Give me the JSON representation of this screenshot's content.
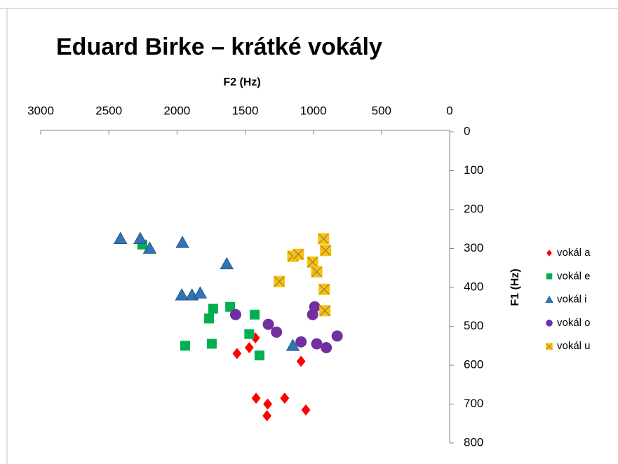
{
  "chart_data": {
    "type": "scatter",
    "title": "Eduard Birke – krátké vokály",
    "x_label": "F2 (Hz)",
    "y_label": "F1 (Hz)",
    "xlim": [
      3000,
      0
    ],
    "ylim": [
      0,
      800
    ],
    "xticks": [
      3000,
      2500,
      2000,
      1500,
      1000,
      500,
      0
    ],
    "yticks": [
      0,
      100,
      200,
      300,
      400,
      500,
      600,
      700,
      800
    ],
    "legend": "right",
    "series": [
      {
        "name": "vokál a",
        "color": "#ff0000",
        "marker": "diamond",
        "x": [
          1425,
          1560,
          1470,
          1090,
          1420,
          1210,
          1335,
          1340,
          1055
        ],
        "values": [
          530,
          570,
          555,
          590,
          685,
          685,
          700,
          730,
          715
        ]
      },
      {
        "name": "vokál e",
        "color": "#00b050",
        "marker": "square",
        "x": [
          2255,
          1735,
          1765,
          1610,
          1430,
          1470,
          1395,
          1745,
          1940
        ],
        "values": [
          290,
          455,
          480,
          450,
          470,
          520,
          575,
          545,
          550
        ]
      },
      {
        "name": "vokál i",
        "color": "#2e75b6",
        "marker": "triangle",
        "x": [
          2415,
          2270,
          2200,
          1960,
          1635,
          1965,
          1890,
          1830,
          1150
        ],
        "values": [
          275,
          275,
          300,
          285,
          340,
          420,
          420,
          415,
          550
        ]
      },
      {
        "name": "vokál o",
        "color": "#7030a0",
        "marker": "circle",
        "x": [
          1570,
          1330,
          1270,
          990,
          1005,
          1090,
          975,
          905,
          825
        ],
        "values": [
          470,
          495,
          515,
          450,
          470,
          540,
          545,
          555,
          525
        ]
      },
      {
        "name": "vokál u",
        "color": "#ffc000",
        "marker": "xsquare",
        "x": [
          925,
          910,
          1150,
          1110,
          1005,
          975,
          1250,
          920,
          915
        ],
        "values": [
          275,
          305,
          320,
          315,
          335,
          360,
          385,
          405,
          460
        ]
      }
    ]
  }
}
